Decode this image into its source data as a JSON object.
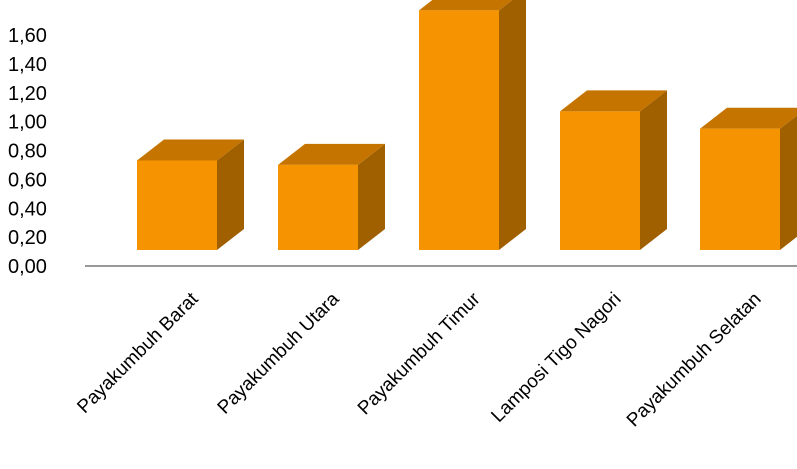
{
  "chart_data": {
    "type": "bar",
    "style": "3d-column",
    "title": "",
    "xlabel": "",
    "ylabel": "",
    "categories": [
      "Payakumbuh Barat",
      "Payakumbuh Utara",
      "Payakumbuh Timur",
      "Lamposi Tigo Nagori",
      "Payakumbuh Selatan"
    ],
    "values": [
      0.62,
      0.59,
      1.66,
      0.96,
      0.84
    ],
    "ylim": [
      0,
      1.6
    ],
    "yticks": [
      "0,00",
      "0,20",
      "0,40",
      "0,60",
      "0,80",
      "1,00",
      "1,20",
      "1,40",
      "1,60"
    ],
    "grid": false,
    "legend": "none",
    "colors": {
      "front": "#F59300",
      "top": "#C67400",
      "side": "#A06000",
      "axis": "#999999"
    }
  }
}
